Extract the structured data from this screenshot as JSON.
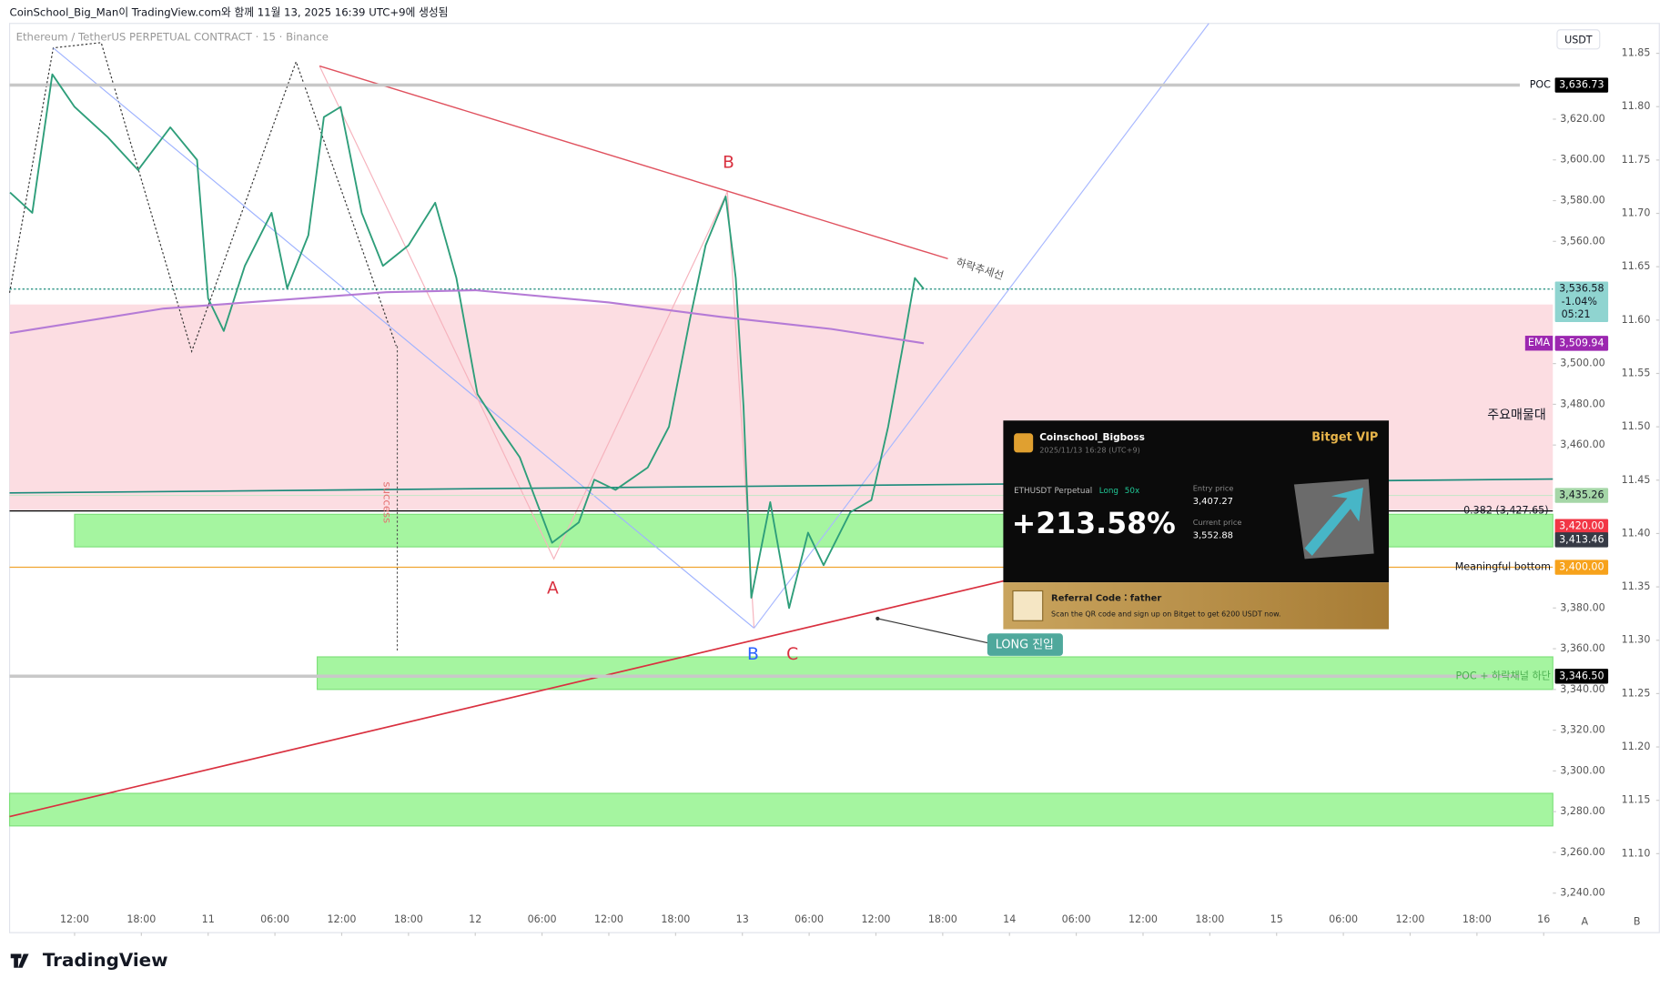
{
  "header": {
    "credit": "CoinSchool_Big_Man이 TradingView.com와 함께 11월 13, 2025 16:39 UTC+9에 생성됨"
  },
  "chart_data": {
    "type": "line",
    "title": "Ethereum / TetherUS PERPETUAL CONTRACT · 15 · Binance",
    "currency": "USDT",
    "xlim": [
      6.16,
      144.82
    ],
    "ylim": [
      3220.6,
      3667
    ],
    "y2lim": [
      11.026,
      11.878
    ],
    "xticks": [
      {
        "value": 12,
        "label": "12:00"
      },
      {
        "value": 18,
        "label": "18:00"
      },
      {
        "value": 24,
        "label": "11"
      },
      {
        "value": 30,
        "label": "06:00"
      },
      {
        "value": 36,
        "label": "12:00"
      },
      {
        "value": 42,
        "label": "18:00"
      },
      {
        "value": 48,
        "label": "12"
      },
      {
        "value": 54,
        "label": "06:00"
      },
      {
        "value": 60,
        "label": "12:00"
      },
      {
        "value": 66,
        "label": "18:00"
      },
      {
        "value": 72,
        "label": "13"
      },
      {
        "value": 78,
        "label": "06:00"
      },
      {
        "value": 84,
        "label": "12:00"
      },
      {
        "value": 90,
        "label": "18:00"
      },
      {
        "value": 96,
        "label": "14"
      },
      {
        "value": 102,
        "label": "06:00"
      },
      {
        "value": 108,
        "label": "12:00"
      },
      {
        "value": 114,
        "label": "18:00"
      },
      {
        "value": 120,
        "label": "15"
      },
      {
        "value": 126,
        "label": "06:00"
      },
      {
        "value": 132,
        "label": "12:00"
      },
      {
        "value": 138,
        "label": "18:00"
      },
      {
        "value": 144,
        "label": "16"
      }
    ],
    "yticks": [
      {
        "value": 3620,
        "label": "3,620.00"
      },
      {
        "value": 3600,
        "label": "3,600.00"
      },
      {
        "value": 3580,
        "label": "3,580.00"
      },
      {
        "value": 3560,
        "label": "3,560.00"
      },
      {
        "value": 3500,
        "label": "3,500.00"
      },
      {
        "value": 3480,
        "label": "3,480.00"
      },
      {
        "value": 3460,
        "label": "3,460.00"
      },
      {
        "value": 3380,
        "label": "3,380.00"
      },
      {
        "value": 3360,
        "label": "3,360.00"
      },
      {
        "value": 3340,
        "label": "3,340.00"
      },
      {
        "value": 3320,
        "label": "3,320.00"
      },
      {
        "value": 3300,
        "label": "3,300.00"
      },
      {
        "value": 3280,
        "label": "3,280.00"
      },
      {
        "value": 3260,
        "label": "3,260.00"
      },
      {
        "value": 3240,
        "label": "3,240.00"
      }
    ],
    "y2ticks": [
      11.85,
      {
        "value": 11.8,
        "label": "11.80"
      },
      11.75,
      {
        "value": 11.7,
        "label": "11.70"
      },
      11.65,
      {
        "value": 11.6,
        "label": "11.60"
      },
      11.55,
      {
        "value": 11.5,
        "label": "11.50"
      },
      11.45,
      {
        "value": 11.4,
        "label": "11.40"
      },
      11.35,
      {
        "value": 11.3,
        "label": "11.30"
      },
      11.25,
      {
        "value": 11.2,
        "label": "11.20"
      },
      11.15,
      {
        "value": 11.1,
        "label": "11.10"
      }
    ],
    "series": [
      {
        "color": "#2e9e7a",
        "x": [
          6.2,
          8.2,
          10,
          12,
          15,
          17.7,
          20.6,
          23,
          24,
          25.4,
          27.3,
          29.7,
          31.1,
          33,
          34.4,
          35.9,
          37.8,
          39.7,
          42,
          44.4,
          46.3,
          48.2,
          50.1,
          52,
          54.9,
          57.3,
          58.7,
          60.6,
          63.5,
          65.4,
          67.3,
          68.7,
          70.5,
          71.4,
          72.1,
          72.8,
          74.5,
          76.2,
          77.9,
          79.3,
          81.7,
          83.6,
          85.1,
          86.5,
          87.5,
          88.3
        ],
        "values": [
          3584,
          3574,
          3642,
          3626,
          3611,
          3595,
          3616,
          3600,
          3532,
          3516,
          3548,
          3574,
          3537,
          3563,
          3621,
          3626,
          3574,
          3548,
          3558,
          3579,
          3542,
          3485,
          3469,
          3454,
          3412,
          3422,
          3443,
          3438,
          3449,
          3469,
          3522,
          3558,
          3582,
          3542,
          3479,
          3385,
          3432,
          3380,
          3417,
          3401,
          3427,
          3433,
          3469,
          3511,
          3542,
          3536.58
        ]
      },
      {
        "name": "EMA",
        "color": "#b57bd6",
        "x": [
          6.2,
          20,
          40,
          48,
          60,
          70,
          80,
          88.3
        ],
        "values": [
          3515,
          3527,
          3535,
          3536,
          3530,
          3523,
          3517,
          3510
        ]
      }
    ],
    "zones": [
      {
        "low": 3428,
        "high": 3529,
        "start": 6.16,
        "color": "#fcdde2"
      },
      {
        "low": 3410,
        "high": 3426,
        "start": 12,
        "color": "#a5f5a0"
      },
      {
        "low": 3340,
        "high": 3356,
        "start": 33.8,
        "color": "#a5f5a0"
      },
      {
        "low": 3273,
        "high": 3289,
        "start": 6.16,
        "color": "#a5f5a0"
      }
    ],
    "levels": [
      {
        "name": "POC",
        "value": 3636.73,
        "label": "3,636.73",
        "color": "#000000",
        "line": "#c8c8c8",
        "width": 3
      },
      {
        "value": 3536.58,
        "label": "3,536.58",
        "change": "-1.04%",
        "countdown": "05:21",
        "color": "#8fd4d0",
        "line": "#1a8a7a",
        "width": 1
      },
      {
        "value": 3509.94,
        "label": "3,509.94",
        "color": "#9c27b0"
      },
      {
        "value": 3435.26,
        "label": "3,435.26",
        "color": "#a5d6a7",
        "line": "#c8e6c9",
        "width": 1
      },
      {
        "name": "0.382 (3,427.65)",
        "value": 3427.65,
        "line": "#000000",
        "width": 1
      },
      {
        "value": 3420,
        "label": "3,420.00",
        "color": "#f23645"
      },
      {
        "value": 3413.46,
        "label": "3,413.46",
        "color": "#363a45"
      },
      {
        "name": "Meaningful bottom",
        "value": 3400,
        "label": "3,400.00",
        "color": "#f7a21b",
        "line": "#f0a530",
        "width": 1
      },
      {
        "name": "POC + 하락채널 하단",
        "value": 3346.5,
        "label": "3,346.50",
        "color": "#000000",
        "line": "#c8c8c8",
        "width": 3
      }
    ],
    "annotations": [
      "B",
      "A",
      "B",
      "C",
      "하락추세선",
      "주요매물대",
      "success",
      "LONG 진입"
    ]
  },
  "card": {
    "user": "Coinschool_Bigboss",
    "time": "2025/11/13 16:28 (UTC+9)",
    "brand": "Bitget VIP",
    "contract": "ETHUSDT Perpetual",
    "side": "Long",
    "leverage": "50x",
    "pnl": "+213.58%",
    "entry_title": "Entry price",
    "entry_price": "3,407.27",
    "current_title": "Current price",
    "current_price": "3,552.88",
    "referral": "Referral Code：father",
    "promo": "Scan the QR code and sign up on Bitget to get 6200 USDT now."
  },
  "footer": {
    "brand": "TradingView",
    "button_a": "A",
    "button_b": "B"
  }
}
